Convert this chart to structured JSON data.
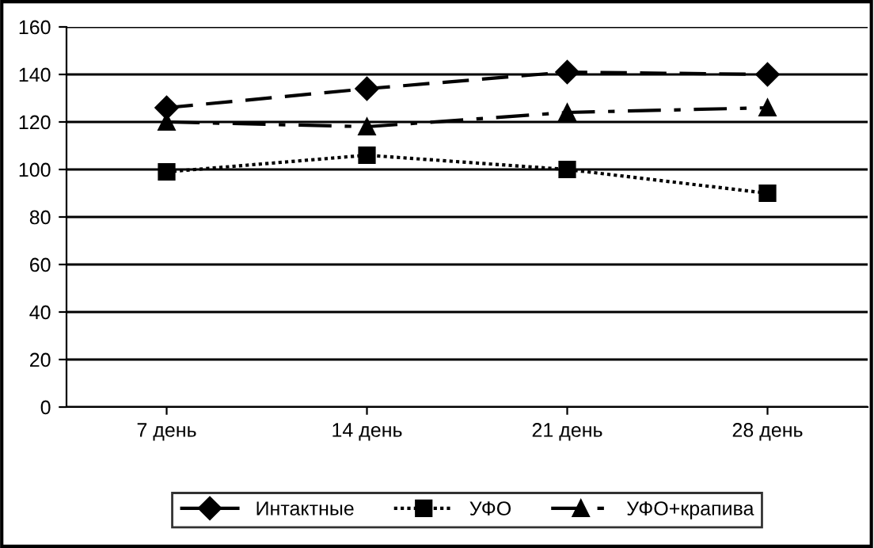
{
  "chart_data": {
    "type": "line",
    "categories": [
      "7 день",
      "14 день",
      "21 день",
      "28 день"
    ],
    "series": [
      {
        "name": "Интактные",
        "color": "#000000",
        "values": [
          126,
          134,
          141,
          140
        ],
        "marker": "diamond",
        "line_style": "dashed"
      },
      {
        "name": "УФО",
        "color": "#000000",
        "values": [
          99,
          106,
          100,
          90
        ],
        "marker": "square",
        "line_style": "dotted"
      },
      {
        "name": "УФО+крапива",
        "color": "#000000",
        "values": [
          120,
          118,
          124,
          126
        ],
        "marker": "triangle",
        "line_style": "dashdot"
      }
    ],
    "ylim": [
      0,
      160
    ],
    "yticks": [
      0,
      20,
      40,
      60,
      80,
      100,
      120,
      140,
      160
    ],
    "grid": "y",
    "legend": "bottom"
  }
}
